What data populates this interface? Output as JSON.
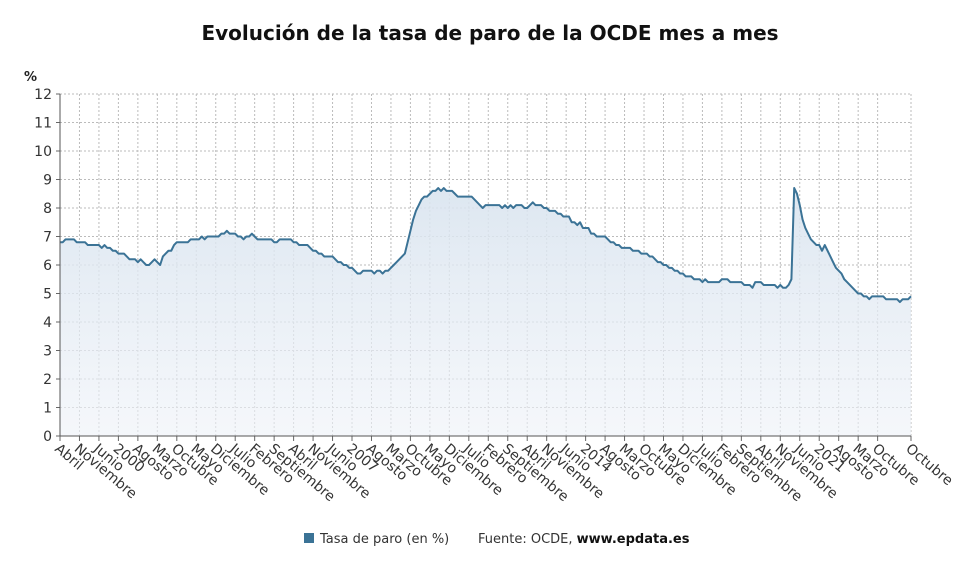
{
  "chart_data": {
    "type": "line",
    "title": "Evolución de la tasa de paro de la OCDE mes a mes",
    "y_label": "%",
    "source_prefix": "Fuente: OCDE, ",
    "source_site": "www.epdata.es",
    "legend": "bottom",
    "grid": true,
    "ylim": [
      0,
      12
    ],
    "yticks": [
      0,
      1,
      2,
      3,
      4,
      5,
      6,
      7,
      8,
      9,
      10,
      11,
      12
    ],
    "categories": [
      "Abril",
      null,
      null,
      null,
      null,
      null,
      null,
      "Noviembre",
      null,
      null,
      null,
      null,
      null,
      null,
      "Junio",
      null,
      null,
      null,
      null,
      null,
      null,
      "2000",
      null,
      null,
      null,
      null,
      null,
      null,
      "Agosto",
      null,
      null,
      null,
      null,
      null,
      null,
      "Marzo",
      null,
      null,
      null,
      null,
      null,
      null,
      "Octubre",
      null,
      null,
      null,
      null,
      null,
      null,
      "Mayo",
      null,
      null,
      null,
      null,
      null,
      null,
      "Diciembre",
      null,
      null,
      null,
      null,
      null,
      null,
      "Julio",
      null,
      null,
      null,
      null,
      null,
      null,
      "Febrero",
      null,
      null,
      null,
      null,
      null,
      null,
      "Septiembre",
      null,
      null,
      null,
      null,
      null,
      null,
      "Abril",
      null,
      null,
      null,
      null,
      null,
      null,
      "Noviembre",
      null,
      null,
      null,
      null,
      null,
      null,
      "Junio",
      null,
      null,
      null,
      null,
      null,
      null,
      "2007",
      null,
      null,
      null,
      null,
      null,
      null,
      "Agosto",
      null,
      null,
      null,
      null,
      null,
      null,
      "Marzo",
      null,
      null,
      null,
      null,
      null,
      null,
      "Octubre",
      null,
      null,
      null,
      null,
      null,
      null,
      "Mayo",
      null,
      null,
      null,
      null,
      null,
      null,
      "Diciembre",
      null,
      null,
      null,
      null,
      null,
      null,
      "Julio",
      null,
      null,
      null,
      null,
      null,
      null,
      "Febrero",
      null,
      null,
      null,
      null,
      null,
      null,
      "Septiembre",
      null,
      null,
      null,
      null,
      null,
      null,
      "Abril",
      null,
      null,
      null,
      null,
      null,
      null,
      "Noviembre",
      null,
      null,
      null,
      null,
      null,
      null,
      "Junio",
      null,
      null,
      null,
      null,
      null,
      null,
      "2014",
      null,
      null,
      null,
      null,
      null,
      null,
      "Agosto",
      null,
      null,
      null,
      null,
      null,
      null,
      "Marzo",
      null,
      null,
      null,
      null,
      null,
      null,
      "Octubre",
      null,
      null,
      null,
      null,
      null,
      null,
      "Mayo",
      null,
      null,
      null,
      null,
      null,
      null,
      "Diciembre",
      null,
      null,
      null,
      null,
      null,
      null,
      "Julio",
      null,
      null,
      null,
      null,
      null,
      null,
      "Febrero",
      null,
      null,
      null,
      null,
      null,
      null,
      "Septiembre",
      null,
      null,
      null,
      null,
      null,
      null,
      "Abril",
      null,
      null,
      null,
      null,
      null,
      null,
      "Noviembre",
      null,
      null,
      null,
      null,
      null,
      null,
      "Junio",
      null,
      null,
      null,
      null,
      null,
      null,
      "2021",
      null,
      null,
      null,
      null,
      null,
      null,
      "Agosto",
      null,
      null,
      null,
      null,
      null,
      null,
      "Marzo",
      null,
      null,
      null,
      null,
      null,
      null,
      "Octubre",
      null,
      null,
      null,
      null,
      null,
      null,
      null,
      null,
      null,
      null,
      null,
      "Octubre"
    ],
    "series": [
      {
        "name": "Tasa de paro (en %)",
        "color": "#3b7396",
        "values": [
          6.8,
          6.8,
          6.9,
          6.9,
          6.9,
          6.9,
          6.8,
          6.8,
          6.8,
          6.8,
          6.7,
          6.7,
          6.7,
          6.7,
          6.7,
          6.6,
          6.7,
          6.6,
          6.6,
          6.5,
          6.5,
          6.4,
          6.4,
          6.4,
          6.3,
          6.2,
          6.2,
          6.2,
          6.1,
          6.2,
          6.1,
          6.0,
          6.0,
          6.1,
          6.2,
          6.1,
          6.0,
          6.3,
          6.4,
          6.5,
          6.5,
          6.7,
          6.8,
          6.8,
          6.8,
          6.8,
          6.8,
          6.9,
          6.9,
          6.9,
          6.9,
          7.0,
          6.9,
          7.0,
          7.0,
          7.0,
          7.0,
          7.0,
          7.1,
          7.1,
          7.2,
          7.1,
          7.1,
          7.1,
          7.0,
          7.0,
          6.9,
          7.0,
          7.0,
          7.1,
          7.0,
          6.9,
          6.9,
          6.9,
          6.9,
          6.9,
          6.9,
          6.8,
          6.8,
          6.9,
          6.9,
          6.9,
          6.9,
          6.9,
          6.8,
          6.8,
          6.7,
          6.7,
          6.7,
          6.7,
          6.6,
          6.5,
          6.5,
          6.4,
          6.4,
          6.3,
          6.3,
          6.3,
          6.3,
          6.2,
          6.1,
          6.1,
          6.0,
          6.0,
          5.9,
          5.9,
          5.8,
          5.7,
          5.7,
          5.8,
          5.8,
          5.8,
          5.8,
          5.7,
          5.8,
          5.8,
          5.7,
          5.8,
          5.8,
          5.9,
          6.0,
          6.1,
          6.2,
          6.3,
          6.4,
          6.8,
          7.2,
          7.6,
          7.9,
          8.1,
          8.3,
          8.4,
          8.4,
          8.5,
          8.6,
          8.6,
          8.7,
          8.6,
          8.7,
          8.6,
          8.6,
          8.6,
          8.5,
          8.4,
          8.4,
          8.4,
          8.4,
          8.4,
          8.4,
          8.3,
          8.2,
          8.1,
          8.0,
          8.1,
          8.1,
          8.1,
          8.1,
          8.1,
          8.1,
          8.0,
          8.1,
          8.0,
          8.1,
          8.0,
          8.1,
          8.1,
          8.1,
          8.0,
          8.0,
          8.1,
          8.2,
          8.1,
          8.1,
          8.1,
          8.0,
          8.0,
          7.9,
          7.9,
          7.9,
          7.8,
          7.8,
          7.7,
          7.7,
          7.7,
          7.5,
          7.5,
          7.4,
          7.5,
          7.3,
          7.3,
          7.3,
          7.1,
          7.1,
          7.0,
          7.0,
          7.0,
          7.0,
          6.9,
          6.8,
          6.8,
          6.7,
          6.7,
          6.6,
          6.6,
          6.6,
          6.6,
          6.5,
          6.5,
          6.5,
          6.4,
          6.4,
          6.4,
          6.3,
          6.3,
          6.2,
          6.1,
          6.1,
          6.0,
          6.0,
          5.9,
          5.9,
          5.8,
          5.8,
          5.7,
          5.7,
          5.6,
          5.6,
          5.6,
          5.5,
          5.5,
          5.5,
          5.4,
          5.5,
          5.4,
          5.4,
          5.4,
          5.4,
          5.4,
          5.5,
          5.5,
          5.5,
          5.4,
          5.4,
          5.4,
          5.4,
          5.4,
          5.3,
          5.3,
          5.3,
          5.2,
          5.4,
          5.4,
          5.4,
          5.3,
          5.3,
          5.3,
          5.3,
          5.3,
          5.2,
          5.3,
          5.2,
          5.2,
          5.3,
          5.5,
          8.7,
          8.5,
          8.1,
          7.6,
          7.3,
          7.1,
          6.9,
          6.8,
          6.7,
          6.7,
          6.5,
          6.7,
          6.5,
          6.3,
          6.1,
          5.9,
          5.8,
          5.7,
          5.5,
          5.4,
          5.3,
          5.2,
          5.1,
          5.0,
          5.0,
          4.9,
          4.9,
          4.8,
          4.9,
          4.9,
          4.9,
          4.9,
          4.9,
          4.8,
          4.8,
          4.8,
          4.8,
          4.8,
          4.7,
          4.8,
          4.8,
          4.8,
          4.9
        ]
      }
    ]
  }
}
